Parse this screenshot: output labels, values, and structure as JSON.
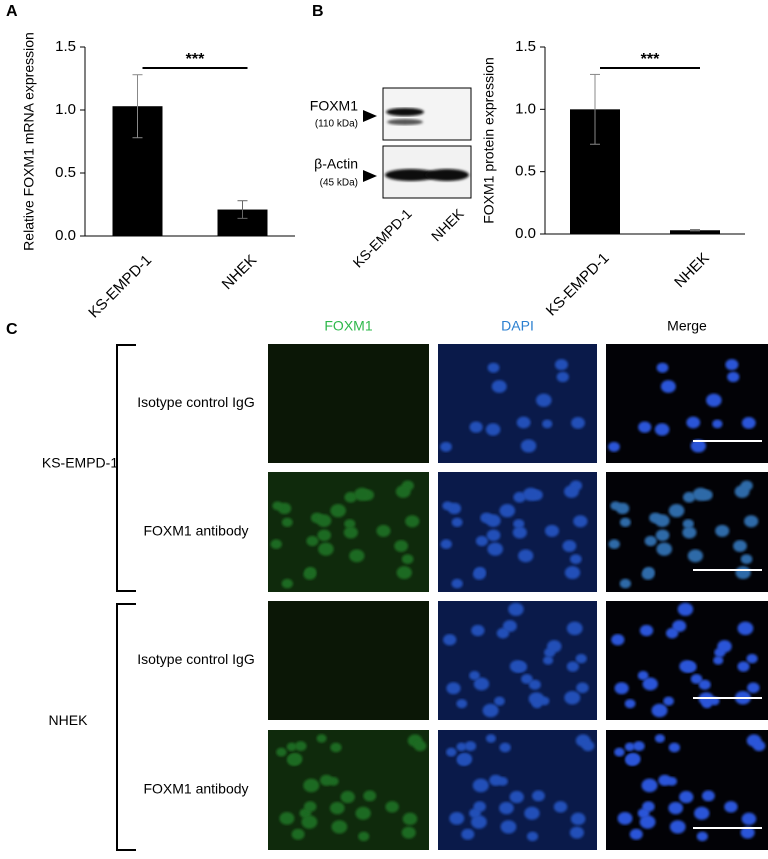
{
  "chart_data": [
    {
      "type": "bar",
      "panel": "A",
      "ylabel": "Relative FOXM1 mRNA expression",
      "categories": [
        "KS-EMPD-1",
        "NHEK"
      ],
      "values": [
        1.03,
        0.21
      ],
      "errors": [
        0.25,
        0.07
      ],
      "color": "#000000",
      "ylim": [
        0,
        1.5
      ],
      "yticks": [
        {
          "value": 0,
          "label": "0.0"
        },
        {
          "value": 0.5,
          "label": "0.5"
        },
        {
          "value": 1,
          "label": "1.0"
        },
        {
          "value": 1.5,
          "label": "1.5"
        }
      ],
      "annotation": "***"
    },
    {
      "type": "bar",
      "panel": "B",
      "ylabel": "FOXM1 protein expression",
      "categories": [
        "KS-EMPD-1",
        "NHEK"
      ],
      "values": [
        1.0,
        0.03
      ],
      "errors": [
        0.28,
        0.005
      ],
      "color": "#000000",
      "ylim": [
        0,
        1.5
      ],
      "yticks": [
        {
          "value": 0,
          "label": "0.0"
        },
        {
          "value": 0.5,
          "label": "0.5"
        },
        {
          "value": 1,
          "label": "1.0"
        },
        {
          "value": 1.5,
          "label": "1.5"
        }
      ],
      "annotation": "***"
    }
  ],
  "blot": {
    "rows": [
      {
        "label": "FOXM1",
        "size": "(110 kDa)"
      },
      {
        "label": "β-Actin",
        "size": "(45 kDa)"
      }
    ],
    "lanes": [
      "KS-EMPD-1",
      "NHEK"
    ]
  },
  "panel_c": {
    "panel": "C",
    "columns": [
      {
        "label": "FOXM1",
        "color": "#2db84a"
      },
      {
        "label": "DAPI",
        "color": "#2a7fd0"
      },
      {
        "label": "Merge",
        "color": "#000000"
      }
    ],
    "groups": [
      {
        "label": "KS-EMPD-1",
        "rows": [
          "Isotype control IgG",
          "FOXM1 antibody"
        ]
      },
      {
        "label": "NHEK",
        "rows": [
          "Isotype control IgG",
          "FOXM1 antibody"
        ]
      }
    ]
  }
}
